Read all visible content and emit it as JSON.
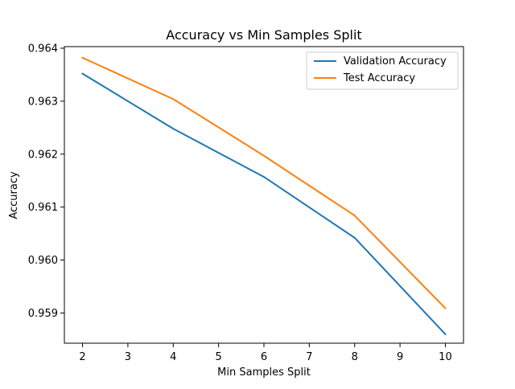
{
  "chart_data": {
    "type": "line",
    "title": "Accuracy vs Min Samples Split",
    "xlabel": "Min Samples Split",
    "ylabel": "Accuracy",
    "x": [
      2,
      4,
      6,
      8,
      10
    ],
    "xlim": [
      1.6,
      10.4
    ],
    "ylim": [
      0.95843,
      0.96403
    ],
    "xticks": [
      2,
      3,
      4,
      5,
      6,
      7,
      8,
      9,
      10
    ],
    "xtick_labels": [
      "2",
      "3",
      "4",
      "5",
      "6",
      "7",
      "8",
      "9",
      "10"
    ],
    "yticks": [
      0.959,
      0.96,
      0.961,
      0.962,
      0.963,
      0.964
    ],
    "ytick_labels": [
      "0.959",
      "0.960",
      "0.961",
      "0.962",
      "0.963",
      "0.964"
    ],
    "grid": false,
    "legend_position": "upper right",
    "series": [
      {
        "name": "Validation Accuracy",
        "color": "#1f77b4",
        "values": [
          0.96352,
          0.96248,
          0.96157,
          0.96042,
          0.9586
        ]
      },
      {
        "name": "Test Accuracy",
        "color": "#ff7f0e",
        "values": [
          0.96382,
          0.96304,
          0.96197,
          0.96084,
          0.95909
        ]
      }
    ]
  }
}
